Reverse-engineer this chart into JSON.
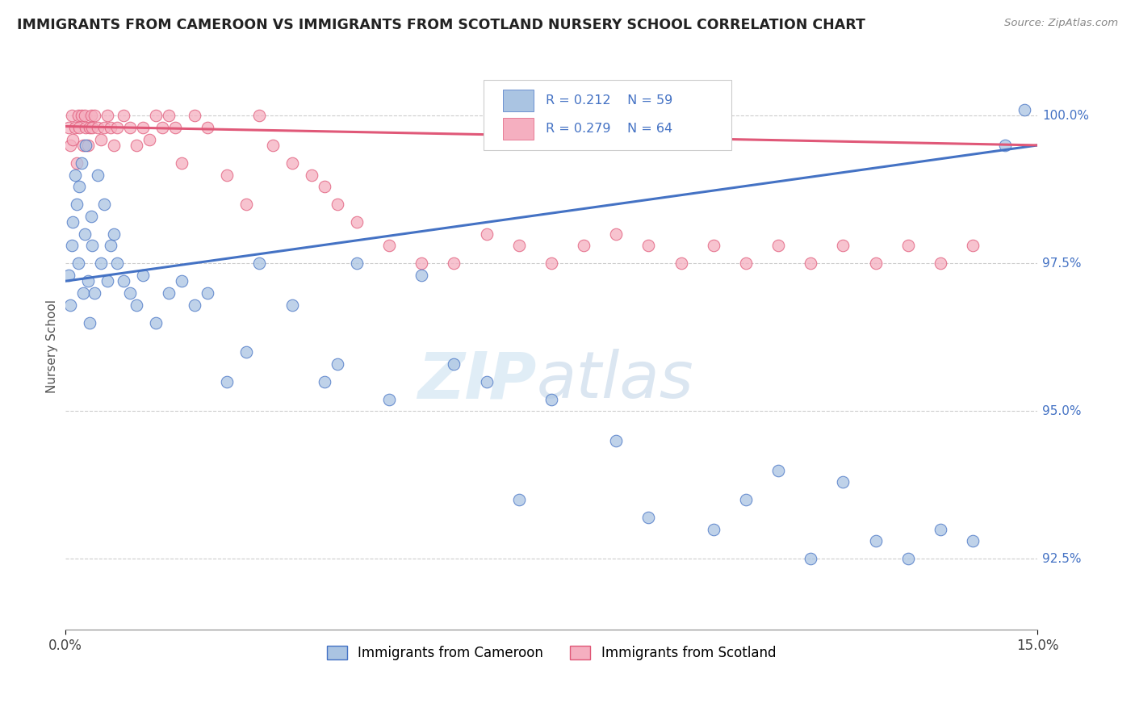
{
  "title": "IMMIGRANTS FROM CAMEROON VS IMMIGRANTS FROM SCOTLAND NURSERY SCHOOL CORRELATION CHART",
  "source": "Source: ZipAtlas.com",
  "ylabel": "Nursery School",
  "y_ticks": [
    92.5,
    95.0,
    97.5,
    100.0
  ],
  "y_tick_labels": [
    "92.5%",
    "95.0%",
    "97.5%",
    "100.0%"
  ],
  "x_min": 0.0,
  "x_max": 15.0,
  "y_min": 91.3,
  "y_max": 100.9,
  "R_cameroon": 0.212,
  "N_cameroon": 59,
  "R_scotland": 0.279,
  "N_scotland": 64,
  "color_cameroon": "#aac4e2",
  "color_scotland": "#f5afc0",
  "line_color_cameroon": "#4472c4",
  "line_color_scotland": "#e05878",
  "watermark_zip": "ZIP",
  "watermark_atlas": "atlas",
  "cam_x": [
    0.05,
    0.08,
    0.1,
    0.12,
    0.15,
    0.18,
    0.2,
    0.22,
    0.25,
    0.28,
    0.3,
    0.32,
    0.35,
    0.38,
    0.4,
    0.42,
    0.45,
    0.5,
    0.55,
    0.6,
    0.65,
    0.7,
    0.75,
    0.8,
    0.9,
    1.0,
    1.1,
    1.2,
    1.4,
    1.6,
    1.8,
    2.0,
    2.2,
    2.5,
    2.8,
    3.0,
    3.5,
    4.0,
    4.2,
    4.5,
    5.0,
    5.5,
    6.0,
    6.5,
    7.0,
    7.5,
    8.5,
    9.0,
    10.0,
    10.5,
    11.0,
    11.5,
    12.0,
    12.5,
    13.0,
    13.5,
    14.0,
    14.5,
    14.8
  ],
  "cam_y": [
    97.3,
    96.8,
    97.8,
    98.2,
    99.0,
    98.5,
    97.5,
    98.8,
    99.2,
    97.0,
    98.0,
    99.5,
    97.2,
    96.5,
    98.3,
    97.8,
    97.0,
    99.0,
    97.5,
    98.5,
    97.2,
    97.8,
    98.0,
    97.5,
    97.2,
    97.0,
    96.8,
    97.3,
    96.5,
    97.0,
    97.2,
    96.8,
    97.0,
    95.5,
    96.0,
    97.5,
    96.8,
    95.5,
    95.8,
    97.5,
    95.2,
    97.3,
    95.8,
    95.5,
    93.5,
    95.2,
    94.5,
    93.2,
    93.0,
    93.5,
    94.0,
    92.5,
    93.8,
    92.8,
    92.5,
    93.0,
    92.8,
    99.5,
    100.1
  ],
  "scot_x": [
    0.05,
    0.08,
    0.1,
    0.12,
    0.15,
    0.18,
    0.2,
    0.22,
    0.25,
    0.28,
    0.3,
    0.32,
    0.35,
    0.38,
    0.4,
    0.42,
    0.45,
    0.5,
    0.55,
    0.6,
    0.65,
    0.7,
    0.75,
    0.8,
    0.9,
    1.0,
    1.1,
    1.2,
    1.3,
    1.4,
    1.5,
    1.6,
    1.7,
    1.8,
    2.0,
    2.2,
    2.5,
    2.8,
    3.0,
    3.2,
    3.5,
    3.8,
    4.0,
    4.2,
    4.5,
    5.0,
    5.5,
    6.0,
    6.5,
    7.0,
    7.5,
    8.0,
    8.5,
    9.0,
    9.5,
    10.0,
    10.5,
    11.0,
    11.5,
    12.0,
    12.5,
    13.0,
    13.5,
    14.0
  ],
  "scot_y": [
    99.8,
    99.5,
    100.0,
    99.6,
    99.8,
    99.2,
    100.0,
    99.8,
    100.0,
    99.5,
    100.0,
    99.8,
    99.5,
    99.8,
    100.0,
    99.8,
    100.0,
    99.8,
    99.6,
    99.8,
    100.0,
    99.8,
    99.5,
    99.8,
    100.0,
    99.8,
    99.5,
    99.8,
    99.6,
    100.0,
    99.8,
    100.0,
    99.8,
    99.2,
    100.0,
    99.8,
    99.0,
    98.5,
    100.0,
    99.5,
    99.2,
    99.0,
    98.8,
    98.5,
    98.2,
    97.8,
    97.5,
    97.5,
    98.0,
    97.8,
    97.5,
    97.8,
    98.0,
    97.8,
    97.5,
    97.8,
    97.5,
    97.8,
    97.5,
    97.8,
    97.5,
    97.8,
    97.5,
    97.8
  ]
}
